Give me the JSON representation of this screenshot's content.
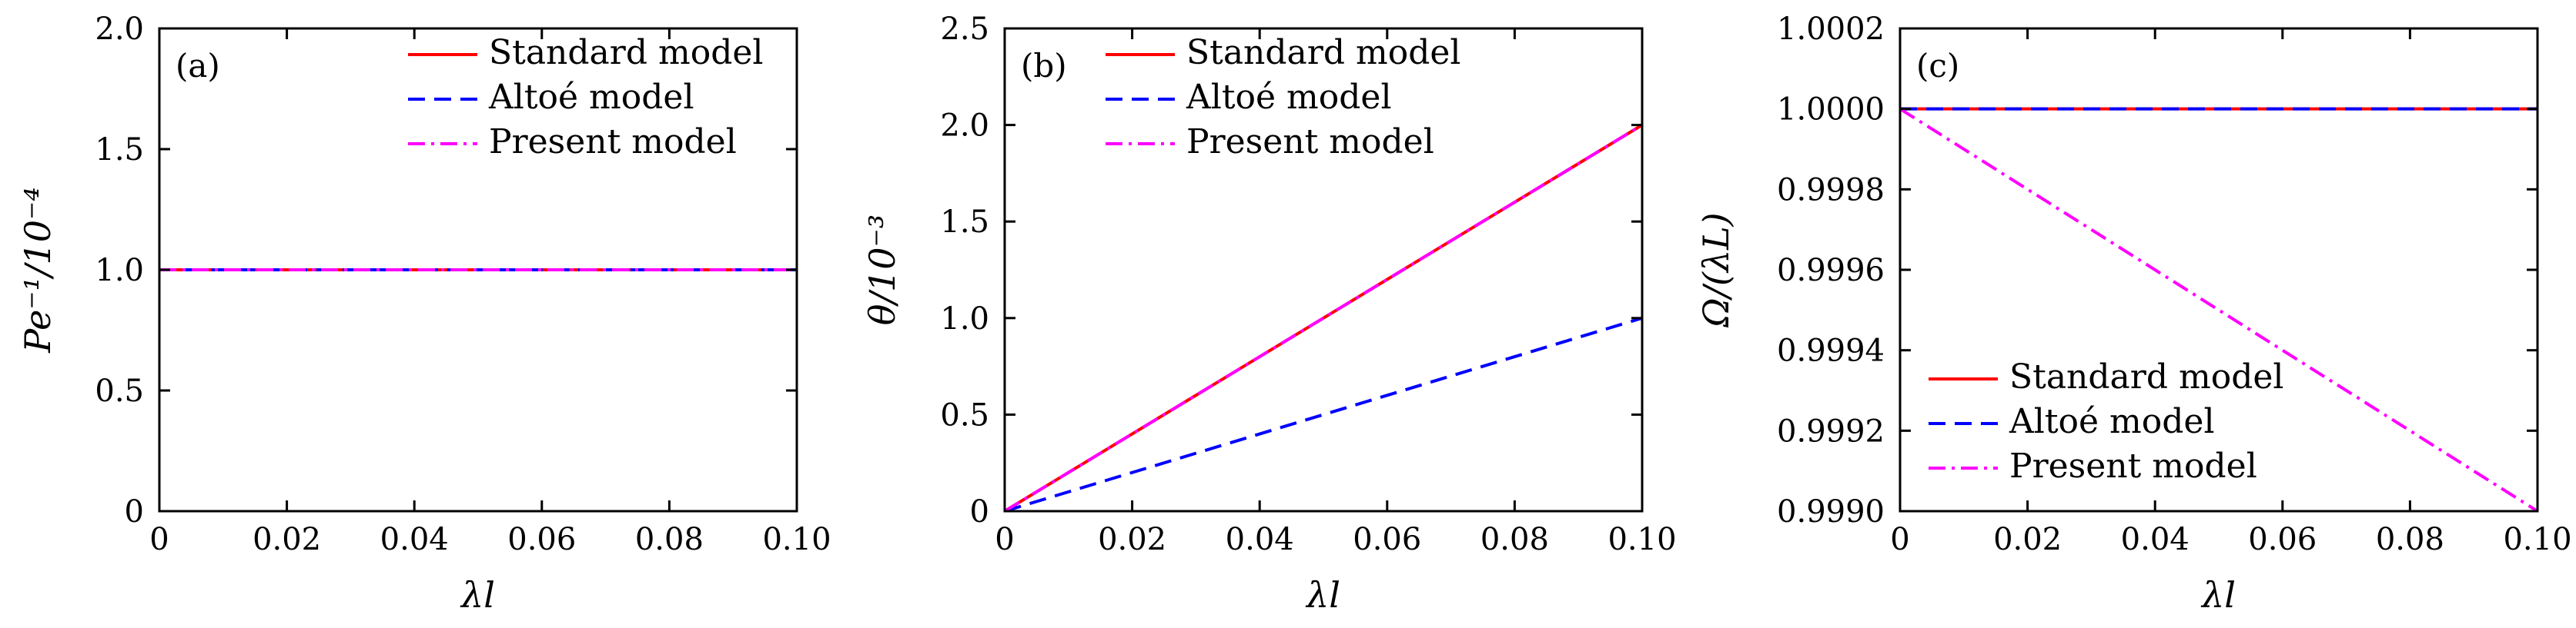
{
  "colors": {
    "standard": "#ff0000",
    "altoe": "#0000ff",
    "present": "#ff00ff"
  },
  "legend": [
    "Standard model",
    "Altoé model",
    "Present model"
  ],
  "chart_data": [
    {
      "panel": "(a)",
      "type": "line",
      "xlabel": "λl",
      "ylabel": "Pe⁻¹/10⁻⁴",
      "xlim": [
        0,
        0.1
      ],
      "ylim": [
        0,
        2.0
      ],
      "xticks": [
        0,
        0.02,
        0.04,
        0.06,
        0.08,
        0.1
      ],
      "xtick_labels": [
        "0",
        "0.02",
        "0.04",
        "0.06",
        "0.08",
        "0.10"
      ],
      "yticks": [
        0,
        0.5,
        1.0,
        1.5,
        2.0
      ],
      "ytick_labels": [
        "0",
        "0.5",
        "1.0",
        "1.5",
        "2.0"
      ],
      "legend_position": "top-right",
      "series": [
        {
          "name": "Standard model",
          "style": "solid",
          "x": [
            0,
            0.1
          ],
          "y": [
            1.0,
            1.0
          ]
        },
        {
          "name": "Altoé model",
          "style": "dashed",
          "x": [
            0,
            0.1
          ],
          "y": [
            1.0,
            1.0
          ]
        },
        {
          "name": "Present model",
          "style": "dashdot",
          "x": [
            0,
            0.1
          ],
          "y": [
            1.0,
            1.0
          ]
        }
      ]
    },
    {
      "panel": "(b)",
      "type": "line",
      "xlabel": "λl",
      "ylabel": "θ/10⁻³",
      "xlim": [
        0,
        0.1
      ],
      "ylim": [
        0,
        2.5
      ],
      "xticks": [
        0,
        0.02,
        0.04,
        0.06,
        0.08,
        0.1
      ],
      "xtick_labels": [
        "0",
        "0.02",
        "0.04",
        "0.06",
        "0.08",
        "0.10"
      ],
      "yticks": [
        0,
        0.5,
        1.0,
        1.5,
        2.0,
        2.5
      ],
      "ytick_labels": [
        "0",
        "0.5",
        "1.0",
        "1.5",
        "2.0",
        "2.5"
      ],
      "legend_position": "top-right",
      "series": [
        {
          "name": "Standard model",
          "style": "solid",
          "x": [
            0,
            0.1
          ],
          "y": [
            0,
            2.0
          ]
        },
        {
          "name": "Altoé model",
          "style": "dashed",
          "x": [
            0,
            0.1
          ],
          "y": [
            0,
            1.0
          ]
        },
        {
          "name": "Present model",
          "style": "dashdot",
          "x": [
            0,
            0.1
          ],
          "y": [
            0,
            2.0
          ]
        }
      ]
    },
    {
      "panel": "(c)",
      "type": "line",
      "xlabel": "λl",
      "ylabel": "Ω/(λL)",
      "xlim": [
        0,
        0.1
      ],
      "ylim": [
        0.999,
        1.0002
      ],
      "xticks": [
        0,
        0.02,
        0.04,
        0.06,
        0.08,
        0.1
      ],
      "xtick_labels": [
        "0",
        "0.02",
        "0.04",
        "0.06",
        "0.08",
        "0.10"
      ],
      "yticks": [
        0.999,
        0.9992,
        0.9994,
        0.9996,
        0.9998,
        1.0,
        1.0002
      ],
      "ytick_labels": [
        "0.9990",
        "0.9992",
        "0.9994",
        "0.9996",
        "0.9998",
        "1.0000",
        "1.0002"
      ],
      "legend_position": "bottom-left",
      "series": [
        {
          "name": "Standard model",
          "style": "solid",
          "x": [
            0,
            0.1
          ],
          "y": [
            1.0,
            1.0
          ]
        },
        {
          "name": "Altoé model",
          "style": "dashed",
          "x": [
            0,
            0.1
          ],
          "y": [
            1.0,
            1.0
          ]
        },
        {
          "name": "Present model",
          "style": "dashdot",
          "x": [
            0,
            0.1
          ],
          "y": [
            1.0,
            0.999
          ]
        }
      ]
    }
  ]
}
